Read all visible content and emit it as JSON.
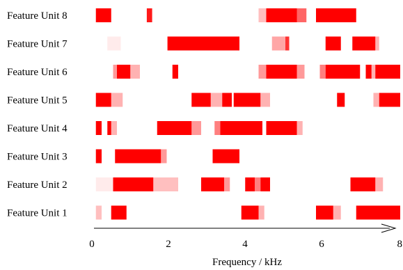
{
  "chart_data": {
    "type": "heatmap",
    "title": "",
    "xlabel": "Frequency / kHz",
    "ylabel": "",
    "xlim": [
      0,
      8
    ],
    "x_ticks": [
      0,
      2,
      4,
      6,
      8
    ],
    "rows": [
      {
        "label": "Feature Unit 8",
        "segments": [
          [
            0.05,
            0.45,
            1
          ],
          [
            1.38,
            1.52,
            0.9
          ],
          [
            4.3,
            4.5,
            0.25
          ],
          [
            4.5,
            5.3,
            1
          ],
          [
            5.3,
            5.55,
            0.6
          ],
          [
            5.8,
            6.85,
            1
          ]
        ]
      },
      {
        "label": "Feature Unit 7",
        "segments": [
          [
            0.35,
            0.7,
            0.08
          ],
          [
            1.92,
            3.8,
            1
          ],
          [
            4.65,
            5.0,
            0.35
          ],
          [
            5.0,
            5.1,
            0.8
          ],
          [
            6.05,
            6.45,
            1
          ],
          [
            6.75,
            7.35,
            1
          ],
          [
            7.35,
            7.45,
            0.3
          ]
        ]
      },
      {
        "label": "Feature Unit 6",
        "segments": [
          [
            0.5,
            0.6,
            0.4
          ],
          [
            0.6,
            0.95,
            1
          ],
          [
            0.95,
            1.2,
            0.3
          ],
          [
            2.05,
            2.2,
            1
          ],
          [
            4.3,
            4.5,
            0.4
          ],
          [
            4.5,
            5.3,
            1
          ],
          [
            5.3,
            5.5,
            0.4
          ],
          [
            5.9,
            6.05,
            0.5
          ],
          [
            6.05,
            6.95,
            1
          ],
          [
            7.1,
            7.25,
            1
          ],
          [
            7.25,
            7.35,
            0.3
          ],
          [
            7.35,
            8.0,
            1
          ]
        ]
      },
      {
        "label": "Feature Unit 5",
        "segments": [
          [
            0.05,
            0.45,
            1
          ],
          [
            0.45,
            0.75,
            0.3
          ],
          [
            2.55,
            3.05,
            1
          ],
          [
            3.05,
            3.35,
            0.3
          ],
          [
            3.35,
            3.6,
            1
          ],
          [
            3.65,
            4.35,
            1
          ],
          [
            4.35,
            4.6,
            0.3
          ],
          [
            6.35,
            6.55,
            1
          ],
          [
            7.3,
            7.45,
            0.3
          ],
          [
            7.45,
            8.0,
            1
          ]
        ]
      },
      {
        "label": "Feature Unit 4",
        "segments": [
          [
            0.05,
            0.2,
            1
          ],
          [
            0.35,
            0.45,
            1
          ],
          [
            0.45,
            0.6,
            0.3
          ],
          [
            1.65,
            2.55,
            1
          ],
          [
            2.55,
            2.8,
            0.4
          ],
          [
            3.15,
            3.3,
            0.5
          ],
          [
            3.3,
            4.4,
            1
          ],
          [
            4.5,
            5.3,
            1
          ],
          [
            5.3,
            5.45,
            0.3
          ]
        ]
      },
      {
        "label": "Feature Unit 3",
        "segments": [
          [
            0.05,
            0.2,
            1
          ],
          [
            0.55,
            1.75,
            1
          ],
          [
            1.75,
            1.9,
            0.4
          ],
          [
            3.1,
            3.8,
            1
          ]
        ]
      },
      {
        "label": "Feature Unit 2",
        "segments": [
          [
            0.05,
            0.5,
            0.08
          ],
          [
            0.5,
            1.55,
            1
          ],
          [
            1.55,
            2.2,
            0.25
          ],
          [
            2.8,
            3.4,
            1
          ],
          [
            3.4,
            3.55,
            0.4
          ],
          [
            3.95,
            4.2,
            1
          ],
          [
            4.2,
            4.35,
            0.5
          ],
          [
            4.35,
            4.6,
            1
          ],
          [
            6.7,
            7.35,
            1
          ],
          [
            7.35,
            7.55,
            0.3
          ]
        ]
      },
      {
        "label": "Feature Unit 1",
        "segments": [
          [
            0.05,
            0.2,
            0.25
          ],
          [
            0.45,
            0.85,
            1
          ],
          [
            3.85,
            4.3,
            1
          ],
          [
            4.3,
            4.45,
            0.3
          ],
          [
            5.8,
            6.25,
            1
          ],
          [
            6.25,
            6.45,
            0.3
          ],
          [
            6.85,
            7.7,
            1
          ],
          [
            7.7,
            8.0,
            1
          ]
        ]
      }
    ]
  }
}
